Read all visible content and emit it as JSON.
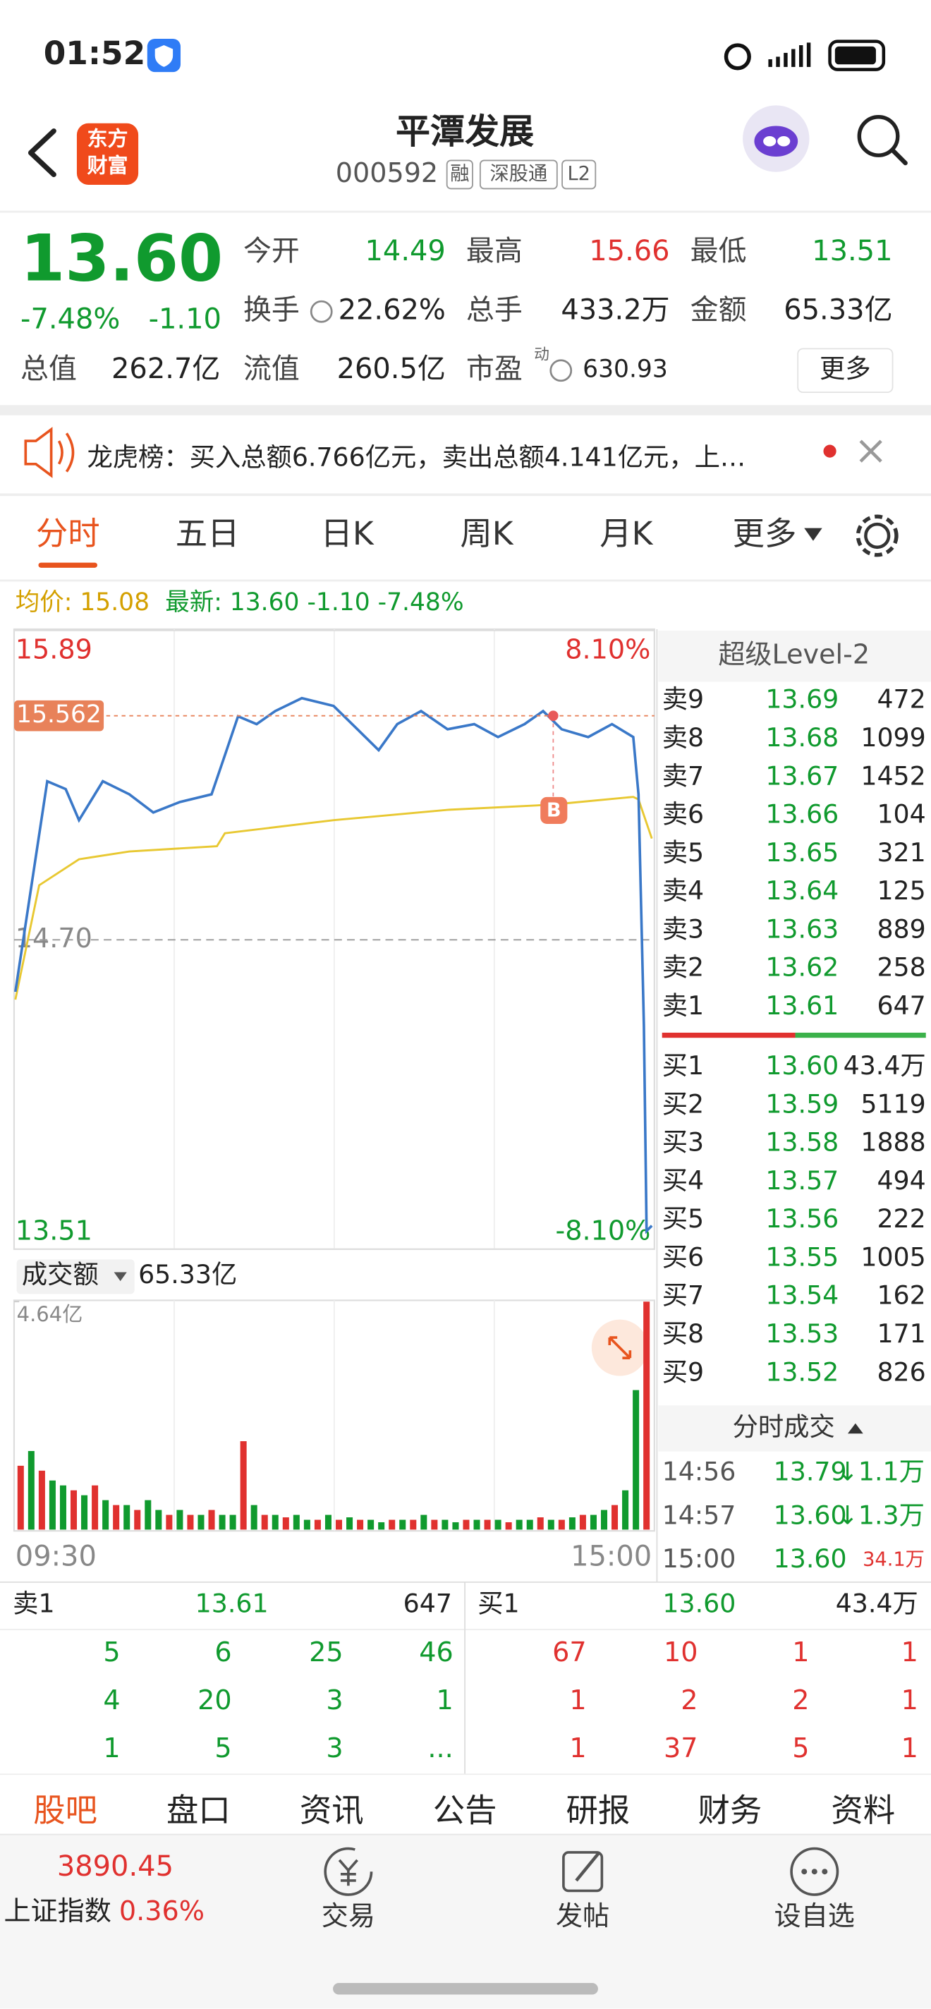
{
  "status_bar": {
    "time": "01:52"
  },
  "header": {
    "logo": [
      "东方",
      "财富"
    ],
    "title": "平潭发展",
    "code": "000592",
    "tags": [
      "融",
      "深股通",
      "L2"
    ]
  },
  "quote": {
    "price": "13.60",
    "change_pct": "-7.48%",
    "change": "-1.10",
    "fields": [
      {
        "label": "今开",
        "value": "14.49"
      },
      {
        "label": "最高",
        "value": "15.66"
      },
      {
        "label": "最低",
        "value": "13.51"
      },
      {
        "label": "换手",
        "value": "22.62%"
      },
      {
        "label": "总手",
        "value": "433.2万"
      },
      {
        "label": "金额",
        "value": "65.33亿"
      },
      {
        "label": "总值",
        "value": "262.7亿"
      },
      {
        "label": "流值",
        "value": "260.5亿"
      },
      {
        "label": "市盈",
        "value": "630.93"
      }
    ],
    "pe_superscript": "动",
    "more_button": "更多"
  },
  "banner": {
    "text": "龙虎榜：买入总额6.766亿元，卖出总额4.141亿元，上…"
  },
  "tabs": [
    "分时",
    "五日",
    "日K",
    "周K",
    "月K",
    "更多"
  ],
  "chart_data": [
    {
      "type": "line",
      "ylim": [
        13.51,
        15.89
      ],
      "yticks": [
        15.89,
        {
          "value": 14.7,
          "label": "14.70"
        },
        13.51
      ],
      "y2lim": [
        -8.1,
        8.1
      ],
      "y2ticks": [
        {
          "value": 8.1,
          "label": "8.10%"
        },
        {
          "value": -8.1,
          "label": "-8.10%"
        }
      ],
      "crosshair": 15.562,
      "marker": "B",
      "series": [
        {
          "name": "均价: 15.08",
          "color": "#e8c832",
          "x": [
            "09:30",
            "09:39",
            "09:54",
            "10:13",
            "10:46",
            "10:49",
            "11:30",
            "13:43",
            "14:22",
            "14:53",
            "14:55",
            "15:00"
          ],
          "values": [
            14.47,
            14.91,
            15.01,
            15.04,
            15.06,
            15.11,
            15.16,
            15.2,
            15.22,
            15.25,
            15.24,
            15.09
          ]
        },
        {
          "name": "最新: 13.60 -1.10 -7.48%",
          "color": "#3a78c8",
          "x": [
            "09:30",
            "09:34",
            "09:42",
            "09:49",
            "09:54",
            "10:03",
            "10:13",
            "10:22",
            "10:32",
            "10:44",
            "10:49",
            "10:54",
            "11:01",
            "11:08",
            "11:18",
            "11:30",
            "13:09",
            "13:17",
            "13:24",
            "13:33",
            "13:43",
            "13:53",
            "14:02",
            "14:12",
            "14:19",
            "14:26",
            "14:36",
            "14:45",
            "14:53",
            "14:55",
            "14:57",
            "14:58",
            "15:00"
          ],
          "values": [
            14.5,
            14.77,
            15.31,
            15.28,
            15.16,
            15.31,
            15.26,
            15.19,
            15.23,
            15.26,
            15.41,
            15.56,
            15.53,
            15.58,
            15.63,
            15.6,
            15.51,
            15.43,
            15.53,
            15.58,
            15.51,
            15.53,
            15.48,
            15.53,
            15.58,
            15.51,
            15.48,
            15.53,
            15.48,
            15.26,
            14.37,
            13.58,
            13.6
          ]
        }
      ]
    },
    {
      "type": "bar",
      "ylim": [
        0,
        4.64
      ],
      "yticks": [
        {
          "value": 4.64,
          "label": "4.64亿"
        }
      ],
      "categories": [
        "09:30",
        null,
        null,
        null,
        null,
        null,
        null,
        null,
        null,
        null,
        null,
        null,
        null,
        null,
        null,
        null,
        null,
        null,
        null,
        null,
        null,
        null,
        null,
        null,
        null,
        null,
        null,
        null,
        null,
        null,
        null,
        null,
        null,
        null,
        null,
        null,
        null,
        null,
        null,
        null,
        null,
        null,
        null,
        null,
        null,
        null,
        null,
        null,
        null,
        null,
        null,
        null,
        null,
        null,
        null,
        null,
        null,
        null,
        null,
        "15:00"
      ],
      "values": [
        1.3,
        1.6,
        1.2,
        1.0,
        0.9,
        0.8,
        0.7,
        0.9,
        0.6,
        0.5,
        0.5,
        0.4,
        0.6,
        0.4,
        0.3,
        0.4,
        0.3,
        0.3,
        0.4,
        0.3,
        0.3,
        1.8,
        0.5,
        0.3,
        0.3,
        0.25,
        0.3,
        0.2,
        0.2,
        0.3,
        0.2,
        0.25,
        0.2,
        0.2,
        0.15,
        0.2,
        0.2,
        0.2,
        0.3,
        0.2,
        0.2,
        0.15,
        0.2,
        0.2,
        0.2,
        0.2,
        0.15,
        0.2,
        0.2,
        0.25,
        0.2,
        0.2,
        0.25,
        0.3,
        0.3,
        0.4,
        0.5,
        0.8,
        2.84,
        4.64
      ],
      "colors": [
        "#e0312f",
        "#109a2e",
        "#e0312f",
        "#109a2e",
        "#109a2e",
        "#e0312f",
        "#109a2e",
        "#e0312f",
        "#109a2e",
        "#e0312f",
        "#109a2e",
        "#e0312f",
        "#109a2e",
        "#109a2e",
        "#e0312f",
        "#109a2e",
        "#e0312f",
        "#109a2e",
        "#e0312f",
        "#109a2e",
        "#109a2e",
        "#e0312f",
        "#109a2e",
        "#e0312f",
        "#109a2e",
        "#e0312f",
        "#109a2e",
        "#109a2e",
        "#e0312f",
        "#109a2e",
        "#e0312f",
        "#109a2e",
        "#e0312f",
        "#109a2e",
        "#109a2e",
        "#e0312f",
        "#109a2e",
        "#e0312f",
        "#109a2e",
        "#e0312f",
        "#109a2e",
        "#109a2e",
        "#e0312f",
        "#109a2e",
        "#e0312f",
        "#109a2e",
        "#e0312f",
        "#109a2e",
        "#109a2e",
        "#e0312f",
        "#109a2e",
        "#e0312f",
        "#109a2e",
        "#e0312f",
        "#109a2e",
        "#109a2e",
        "#e0312f",
        "#109a2e",
        "#109a2e",
        "#e0312f"
      ]
    }
  ],
  "volume_header": {
    "selector": "成交额",
    "total": "65.33亿"
  },
  "order_book": {
    "title": "超级Level-2",
    "asks": [
      {
        "label": "卖9",
        "price": "13.69",
        "volume": "472"
      },
      {
        "label": "卖8",
        "price": "13.68",
        "volume": "1099"
      },
      {
        "label": "卖7",
        "price": "13.67",
        "volume": "1452"
      },
      {
        "label": "卖6",
        "price": "13.66",
        "volume": "104"
      },
      {
        "label": "卖5",
        "price": "13.65",
        "volume": "321"
      },
      {
        "label": "卖4",
        "price": "13.64",
        "volume": "125"
      },
      {
        "label": "卖3",
        "price": "13.63",
        "volume": "889"
      },
      {
        "label": "卖2",
        "price": "13.62",
        "volume": "258"
      },
      {
        "label": "卖1",
        "price": "13.61",
        "volume": "647"
      }
    ],
    "bids": [
      {
        "label": "买1",
        "price": "13.60",
        "volume": "43.4万"
      },
      {
        "label": "买2",
        "price": "13.59",
        "volume": "5119"
      },
      {
        "label": "买3",
        "price": "13.58",
        "volume": "1888"
      },
      {
        "label": "买4",
        "price": "13.57",
        "volume": "494"
      },
      {
        "label": "买5",
        "price": "13.56",
        "volume": "222"
      },
      {
        "label": "买6",
        "price": "13.55",
        "volume": "1005"
      },
      {
        "label": "买7",
        "price": "13.54",
        "volume": "162"
      },
      {
        "label": "买8",
        "price": "13.53",
        "volume": "171"
      },
      {
        "label": "买9",
        "price": "13.52",
        "volume": "826"
      }
    ]
  },
  "time_sales": {
    "title": "分时成交",
    "rows": [
      {
        "time": "14:56",
        "price": "13.79",
        "volume": "↓1.1万"
      },
      {
        "time": "14:57",
        "price": "13.60",
        "volume": "↓1.3万"
      },
      {
        "time": "15:00",
        "price": "13.60",
        "volume": "34.1万"
      }
    ]
  },
  "level1": {
    "ask": {
      "label": "卖1",
      "price": "13.61",
      "volume": "647"
    },
    "bid": {
      "label": "买1",
      "price": "13.60",
      "volume": "43.4万"
    },
    "ask_queue": [
      [
        5,
        6,
        25,
        46
      ],
      [
        4,
        20,
        3,
        1
      ],
      [
        1,
        5,
        3,
        "..."
      ]
    ],
    "bid_queue": [
      [
        67,
        10,
        1,
        1
      ],
      [
        1,
        2,
        2,
        1
      ],
      [
        1,
        37,
        5,
        1
      ]
    ]
  },
  "bottom_tabs": [
    "股吧",
    "盘口",
    "资讯",
    "公告",
    "研报",
    "财务",
    "资料"
  ],
  "footer": {
    "index_value": "3890.45",
    "index_name": "上证指数",
    "index_pct": "0.36%",
    "nav": [
      "交易",
      "发帖",
      "设自选"
    ]
  }
}
